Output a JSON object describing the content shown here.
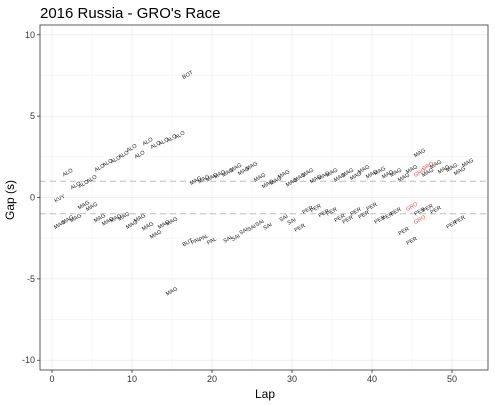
{
  "chart_data": {
    "type": "scatter",
    "title": "2016 Russia - GRO's Race",
    "xlabel": "Lap",
    "ylabel": "Gap (s)",
    "xlim": [
      -1.5,
      54.5
    ],
    "ylim": [
      -10.6,
      10.6
    ],
    "x_ticks": [
      0,
      10,
      20,
      30,
      40,
      50
    ],
    "y_ticks": [
      -10,
      -5,
      0,
      5,
      10
    ],
    "grid": true,
    "reference_lines": [
      1,
      -1
    ],
    "label_angle": 30,
    "colors": {
      "default": "#1a1a1a",
      "highlight": "#e8574a",
      "refline": "#bdbdbd",
      "grid": "#ebebeb",
      "border": "#333333"
    },
    "points": [
      {
        "x": 1,
        "y": -0.1,
        "label": "KVY"
      },
      {
        "x": 2,
        "y": 1.5,
        "label": "ALO"
      },
      {
        "x": 3,
        "y": 0.7,
        "label": "ALO"
      },
      {
        "x": 4,
        "y": 0.8,
        "label": "ALO"
      },
      {
        "x": 5,
        "y": 1.1,
        "label": "ALO"
      },
      {
        "x": 6,
        "y": 1.8,
        "label": "ALO"
      },
      {
        "x": 7,
        "y": 2.1,
        "label": "ALO"
      },
      {
        "x": 8,
        "y": 2.3,
        "label": "ALO"
      },
      {
        "x": 9,
        "y": 2.6,
        "label": "ALO"
      },
      {
        "x": 10,
        "y": 3.0,
        "label": "ALO"
      },
      {
        "x": 11,
        "y": 2.6,
        "label": "ALO"
      },
      {
        "x": 12,
        "y": 3.4,
        "label": "ALO"
      },
      {
        "x": 13,
        "y": 3.2,
        "label": "ALO"
      },
      {
        "x": 14,
        "y": 3.4,
        "label": "ALO"
      },
      {
        "x": 15,
        "y": 3.6,
        "label": "ALO"
      },
      {
        "x": 16,
        "y": 3.8,
        "label": "ALO"
      },
      {
        "x": 17,
        "y": 7.5,
        "label": "BOT"
      },
      {
        "x": 1,
        "y": -1.7,
        "label": "MAG"
      },
      {
        "x": 2,
        "y": -1.4,
        "label": "MAG"
      },
      {
        "x": 3,
        "y": -1.3,
        "label": "MAG"
      },
      {
        "x": 4,
        "y": -0.5,
        "label": "MAG"
      },
      {
        "x": 5,
        "y": -0.6,
        "label": "MAG"
      },
      {
        "x": 6,
        "y": -1.3,
        "label": "MAG"
      },
      {
        "x": 7,
        "y": -1.5,
        "label": "MAG"
      },
      {
        "x": 8,
        "y": -1.3,
        "label": "MAG"
      },
      {
        "x": 9,
        "y": -1.2,
        "label": "MAG"
      },
      {
        "x": 10,
        "y": -1.7,
        "label": "MAG"
      },
      {
        "x": 11,
        "y": -1.3,
        "label": "MAG"
      },
      {
        "x": 12,
        "y": -1.8,
        "label": "MAG"
      },
      {
        "x": 13,
        "y": -2.3,
        "label": "MAG"
      },
      {
        "x": 14,
        "y": -1.7,
        "label": "MAG"
      },
      {
        "x": 15,
        "y": -1.5,
        "label": "MAG"
      },
      {
        "x": 15,
        "y": -5.8,
        "label": "MAG"
      },
      {
        "x": 17,
        "y": -2.8,
        "label": "BUT"
      },
      {
        "x": 18,
        "y": -2.7,
        "label": "PAL"
      },
      {
        "x": 19,
        "y": -2.5,
        "label": "PAL"
      },
      {
        "x": 20,
        "y": -2.7,
        "label": "PAL"
      },
      {
        "x": 22,
        "y": -2.6,
        "label": "SAI"
      },
      {
        "x": 23,
        "y": -2.5,
        "label": "SAI"
      },
      {
        "x": 24,
        "y": -2.1,
        "label": "SAI"
      },
      {
        "x": 25,
        "y": -1.9,
        "label": "SAI"
      },
      {
        "x": 26,
        "y": -1.6,
        "label": "SAI"
      },
      {
        "x": 27,
        "y": -1.8,
        "label": "SAI"
      },
      {
        "x": 29,
        "y": -1.3,
        "label": "SAI"
      },
      {
        "x": 30,
        "y": -1.5,
        "label": "SAI"
      },
      {
        "x": 31,
        "y": -1.9,
        "label": "PER"
      },
      {
        "x": 32,
        "y": -0.8,
        "label": "PER"
      },
      {
        "x": 33,
        "y": -0.7,
        "label": "PER"
      },
      {
        "x": 34,
        "y": -1.0,
        "label": "PER"
      },
      {
        "x": 35,
        "y": -0.9,
        "label": "PER"
      },
      {
        "x": 36,
        "y": -1.3,
        "label": "PER"
      },
      {
        "x": 37,
        "y": -1.4,
        "label": "PER"
      },
      {
        "x": 38,
        "y": -0.9,
        "label": "PER"
      },
      {
        "x": 39,
        "y": -1.1,
        "label": "PER"
      },
      {
        "x": 40,
        "y": -0.6,
        "label": "PER"
      },
      {
        "x": 41,
        "y": -1.4,
        "label": "PER"
      },
      {
        "x": 42,
        "y": -1.2,
        "label": "PER"
      },
      {
        "x": 43,
        "y": -0.9,
        "label": "PER"
      },
      {
        "x": 44,
        "y": -2.1,
        "label": "PER"
      },
      {
        "x": 45,
        "y": -2.7,
        "label": "PER"
      },
      {
        "x": 46,
        "y": -0.9,
        "label": "PER"
      },
      {
        "x": 47,
        "y": -0.7,
        "label": "PER"
      },
      {
        "x": 48,
        "y": -0.8,
        "label": "PER"
      },
      {
        "x": 50,
        "y": -1.7,
        "label": "PER"
      },
      {
        "x": 51,
        "y": -1.4,
        "label": "PER"
      },
      {
        "x": 18,
        "y": 1.0,
        "label": "MAG"
      },
      {
        "x": 19,
        "y": 1.1,
        "label": "MAG"
      },
      {
        "x": 20,
        "y": 1.2,
        "label": "MAG"
      },
      {
        "x": 21,
        "y": 1.4,
        "label": "MAG"
      },
      {
        "x": 22,
        "y": 1.5,
        "label": "MAG"
      },
      {
        "x": 23,
        "y": 1.8,
        "label": "MAG"
      },
      {
        "x": 24,
        "y": 1.6,
        "label": "MAG"
      },
      {
        "x": 25,
        "y": 1.9,
        "label": "MAG"
      },
      {
        "x": 26,
        "y": 1.2,
        "label": "MAG"
      },
      {
        "x": 27,
        "y": 0.8,
        "label": "MAG"
      },
      {
        "x": 28,
        "y": 1.0,
        "label": "MAG"
      },
      {
        "x": 29,
        "y": 1.4,
        "label": "MAG"
      },
      {
        "x": 30,
        "y": 0.9,
        "label": "MAG"
      },
      {
        "x": 31,
        "y": 1.2,
        "label": "MAG"
      },
      {
        "x": 32,
        "y": 1.5,
        "label": "MAG"
      },
      {
        "x": 33,
        "y": 1.1,
        "label": "MAG"
      },
      {
        "x": 34,
        "y": 1.3,
        "label": "MAG"
      },
      {
        "x": 35,
        "y": 1.5,
        "label": "MAG"
      },
      {
        "x": 36,
        "y": 1.2,
        "label": "MAG"
      },
      {
        "x": 37,
        "y": 1.5,
        "label": "MAG"
      },
      {
        "x": 38,
        "y": 1.3,
        "label": "MAG"
      },
      {
        "x": 39,
        "y": 1.7,
        "label": "MAG"
      },
      {
        "x": 40,
        "y": 1.4,
        "label": "MAG"
      },
      {
        "x": 41,
        "y": 1.6,
        "label": "MAG"
      },
      {
        "x": 42,
        "y": 1.4,
        "label": "MAG"
      },
      {
        "x": 43,
        "y": 1.5,
        "label": "MAG"
      },
      {
        "x": 44,
        "y": 1.2,
        "label": "MAG"
      },
      {
        "x": 45,
        "y": 1.7,
        "label": "MAG"
      },
      {
        "x": 46,
        "y": 2.7,
        "label": "MAG"
      },
      {
        "x": 47,
        "y": 1.5,
        "label": "MAG"
      },
      {
        "x": 48,
        "y": 2.0,
        "label": "MAG"
      },
      {
        "x": 49,
        "y": 1.7,
        "label": "MAG"
      },
      {
        "x": 50,
        "y": 1.8,
        "label": "MAG"
      },
      {
        "x": 51,
        "y": 1.6,
        "label": "MAG"
      },
      {
        "x": 52,
        "y": 2.1,
        "label": "MAG"
      },
      {
        "x": 46,
        "y": 1.5,
        "label": "GRO",
        "highlight": true
      },
      {
        "x": 47,
        "y": 1.9,
        "label": "GRO",
        "highlight": true
      },
      {
        "x": 45,
        "y": -0.6,
        "label": "GRO",
        "highlight": true
      },
      {
        "x": 46,
        "y": -1.4,
        "label": "GRO",
        "highlight": true
      }
    ]
  }
}
